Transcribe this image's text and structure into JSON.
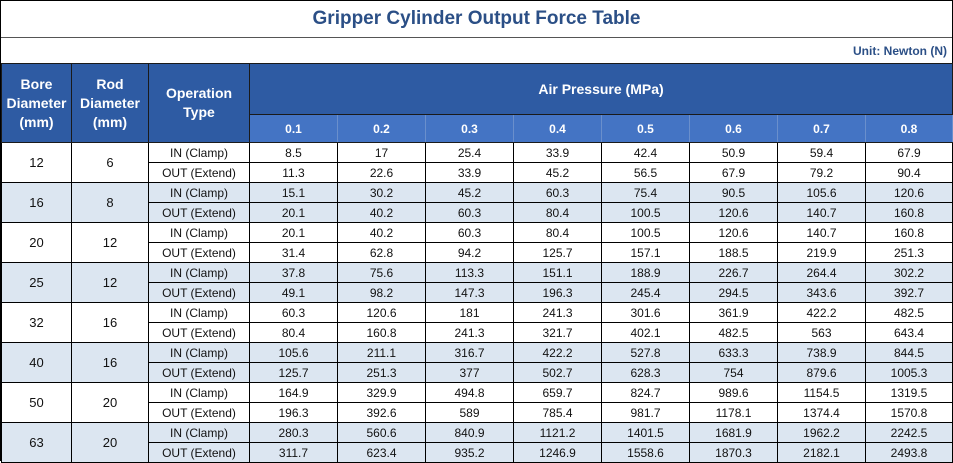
{
  "title": "Gripper Cylinder Output Force Table",
  "unit": "Unit: Newton (N)",
  "headers": {
    "bore": "Bore Diameter (mm)",
    "rod": "Rod Diameter (mm)",
    "operation": "Operation Type",
    "air_pressure": "Air Pressure (MPa)",
    "pressures": [
      "0.1",
      "0.2",
      "0.3",
      "0.4",
      "0.5",
      "0.6",
      "0.7",
      "0.8"
    ]
  },
  "colors": {
    "header_dark": "#2e5ba3",
    "header_light": "#4474c4",
    "row_alt": "#dce6f1",
    "title": "#2b4f86"
  },
  "rows": [
    {
      "bore": "12",
      "rod": "6",
      "in_label": "IN (Clamp)",
      "in": [
        "8.5",
        "17",
        "25.4",
        "33.9",
        "42.4",
        "50.9",
        "59.4",
        "67.9"
      ],
      "out_label": "OUT (Extend)",
      "out": [
        "11.3",
        "22.6",
        "33.9",
        "45.2",
        "56.5",
        "67.9",
        "79.2",
        "90.4"
      ]
    },
    {
      "bore": "16",
      "rod": "8",
      "in_label": "IN (Clamp)",
      "in": [
        "15.1",
        "30.2",
        "45.2",
        "60.3",
        "75.4",
        "90.5",
        "105.6",
        "120.6"
      ],
      "out_label": "OUT (Extend)",
      "out": [
        "20.1",
        "40.2",
        "60.3",
        "80.4",
        "100.5",
        "120.6",
        "140.7",
        "160.8"
      ]
    },
    {
      "bore": "20",
      "rod": "12",
      "in_label": "IN (Clamp)",
      "in": [
        "20.1",
        "40.2",
        "60.3",
        "80.4",
        "100.5",
        "120.6",
        "140.7",
        "160.8"
      ],
      "out_label": "OUT (Extend)",
      "out": [
        "31.4",
        "62.8",
        "94.2",
        "125.7",
        "157.1",
        "188.5",
        "219.9",
        "251.3"
      ]
    },
    {
      "bore": "25",
      "rod": "12",
      "in_label": "IN (Clamp)",
      "in": [
        "37.8",
        "75.6",
        "113.3",
        "151.1",
        "188.9",
        "226.7",
        "264.4",
        "302.2"
      ],
      "out_label": "OUT (Extend)",
      "out": [
        "49.1",
        "98.2",
        "147.3",
        "196.3",
        "245.4",
        "294.5",
        "343.6",
        "392.7"
      ]
    },
    {
      "bore": "32",
      "rod": "16",
      "in_label": "IN (Clamp)",
      "in": [
        "60.3",
        "120.6",
        "181",
        "241.3",
        "301.6",
        "361.9",
        "422.2",
        "482.5"
      ],
      "out_label": "OUT (Extend)",
      "out": [
        "80.4",
        "160.8",
        "241.3",
        "321.7",
        "402.1",
        "482.5",
        "563",
        "643.4"
      ]
    },
    {
      "bore": "40",
      "rod": "16",
      "in_label": "IN (Clamp)",
      "in": [
        "105.6",
        "211.1",
        "316.7",
        "422.2",
        "527.8",
        "633.3",
        "738.9",
        "844.5"
      ],
      "out_label": "OUT (Extend)",
      "out": [
        "125.7",
        "251.3",
        "377",
        "502.7",
        "628.3",
        "754",
        "879.6",
        "1005.3"
      ]
    },
    {
      "bore": "50",
      "rod": "20",
      "in_label": "IN (Clamp)",
      "in": [
        "164.9",
        "329.9",
        "494.8",
        "659.7",
        "824.7",
        "989.6",
        "1154.5",
        "1319.5"
      ],
      "out_label": "OUT (Extend)",
      "out": [
        "196.3",
        "392.6",
        "589",
        "785.4",
        "981.7",
        "1178.1",
        "1374.4",
        "1570.8"
      ]
    },
    {
      "bore": "63",
      "rod": "20",
      "in_label": "IN (Clamp)",
      "in": [
        "280.3",
        "560.6",
        "840.9",
        "1121.2",
        "1401.5",
        "1681.9",
        "1962.2",
        "2242.5"
      ],
      "out_label": "OUT (Extend)",
      "out": [
        "311.7",
        "623.4",
        "935.2",
        "1246.9",
        "1558.6",
        "1870.3",
        "2182.1",
        "2493.8"
      ]
    }
  ]
}
